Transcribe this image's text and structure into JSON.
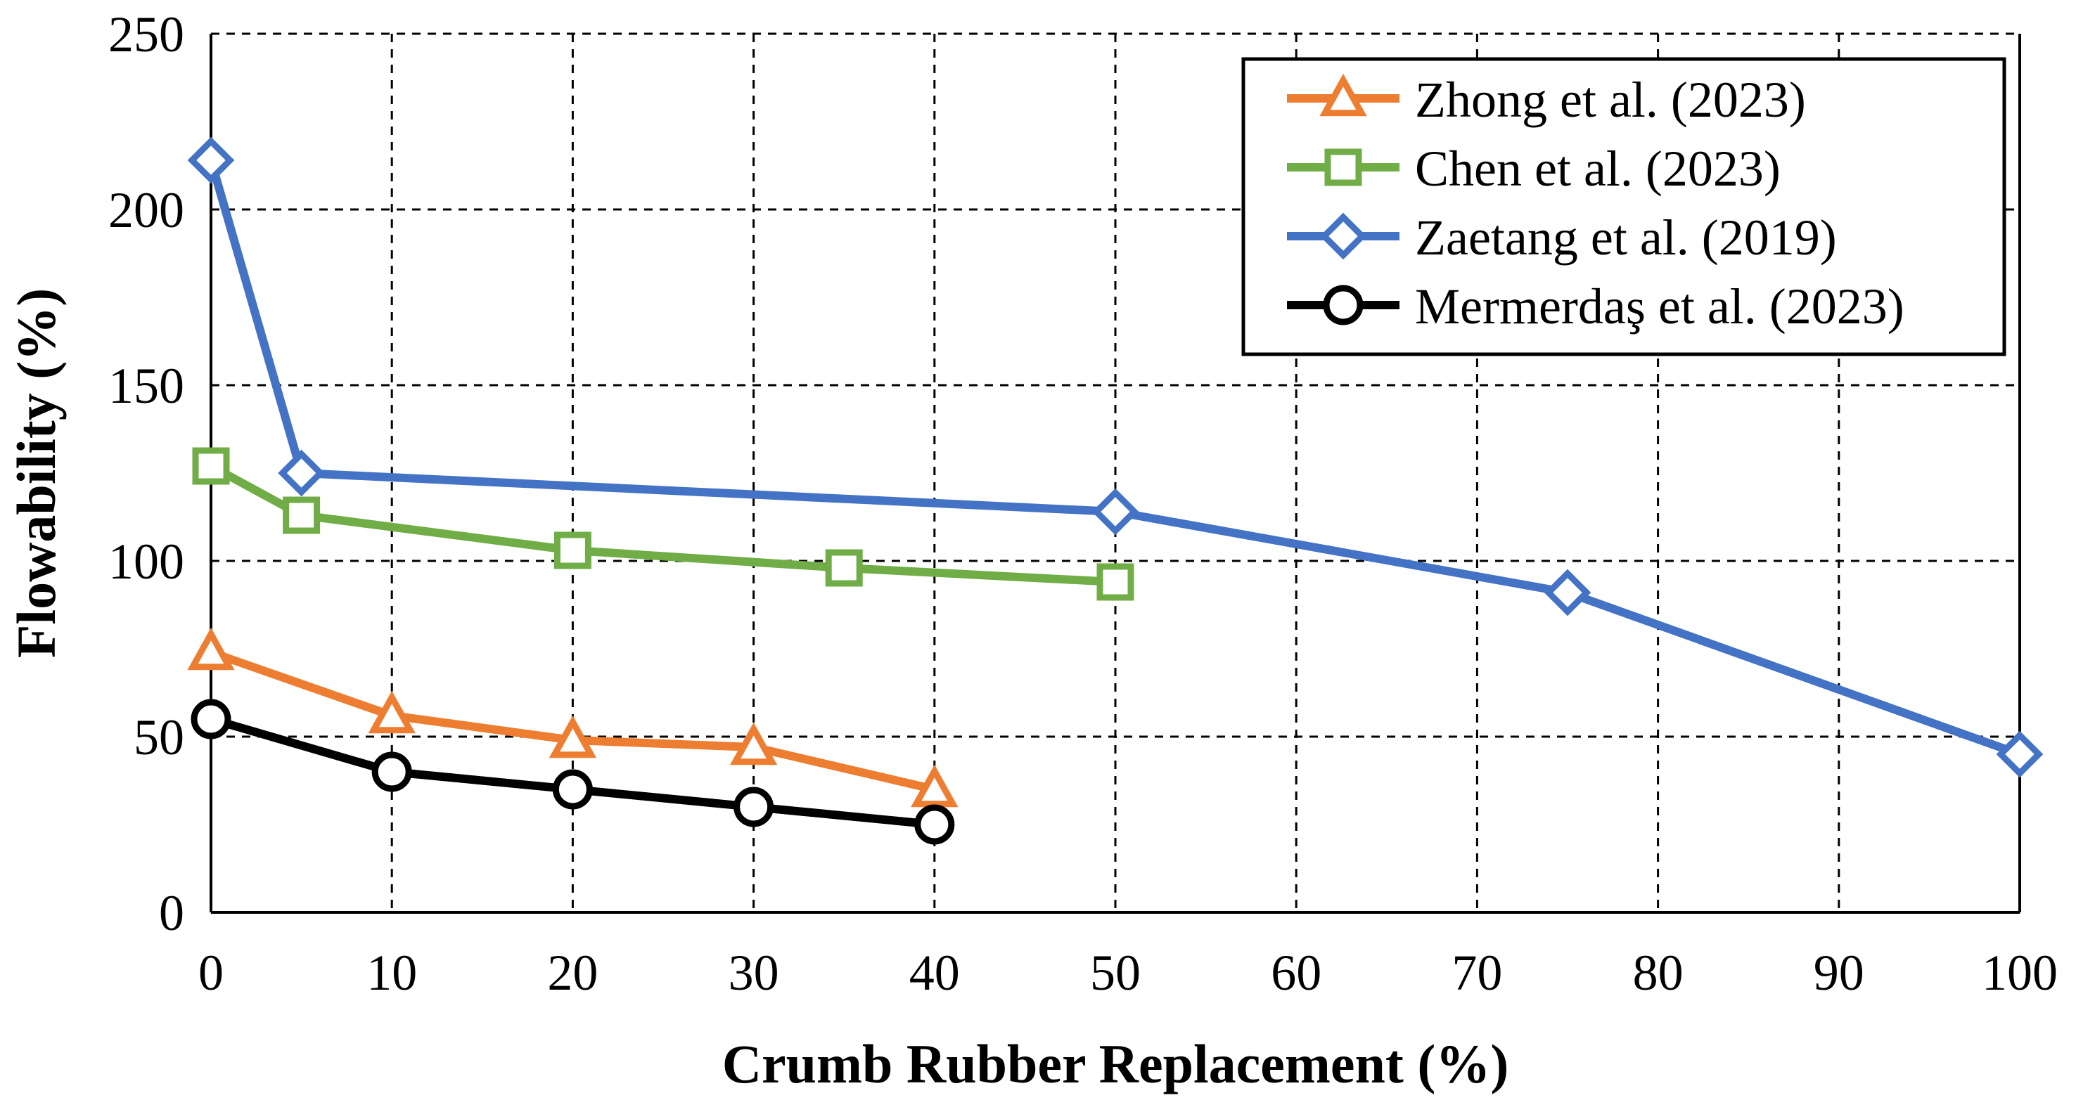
{
  "chart_data": {
    "type": "line",
    "title": "",
    "xlabel": "Crumb Rubber Replacement (%)",
    "ylabel": "Flowability (%)",
    "xlim": [
      0,
      100
    ],
    "ylim": [
      0,
      250
    ],
    "xticks": [
      0,
      10,
      20,
      30,
      40,
      50,
      60,
      70,
      80,
      90,
      100
    ],
    "yticks": [
      0,
      50,
      100,
      150,
      200,
      250
    ],
    "grid": true,
    "legend_position": "top-right",
    "series": [
      {
        "name": "Zhong et al. (2023)",
        "color": "#ED7D31",
        "marker": "triangle",
        "x": [
          0,
          10,
          20,
          30,
          40
        ],
        "y": [
          74,
          56,
          49,
          47,
          35
        ]
      },
      {
        "name": "Chen et al. (2023)",
        "color": "#70AD47",
        "marker": "square",
        "x": [
          0,
          5,
          20,
          35,
          50
        ],
        "y": [
          127,
          113,
          103,
          98,
          94
        ]
      },
      {
        "name": "Zaetang et al. (2019)",
        "color": "#4472C4",
        "marker": "diamond",
        "x": [
          0,
          5,
          50,
          75,
          100
        ],
        "y": [
          214,
          125,
          114,
          91,
          45
        ]
      },
      {
        "name": "Mermerdaş et al. (2023)",
        "color": "#000000",
        "marker": "circle",
        "x": [
          0,
          10,
          20,
          30,
          40
        ],
        "y": [
          55,
          40,
          35,
          30,
          25
        ]
      }
    ]
  }
}
